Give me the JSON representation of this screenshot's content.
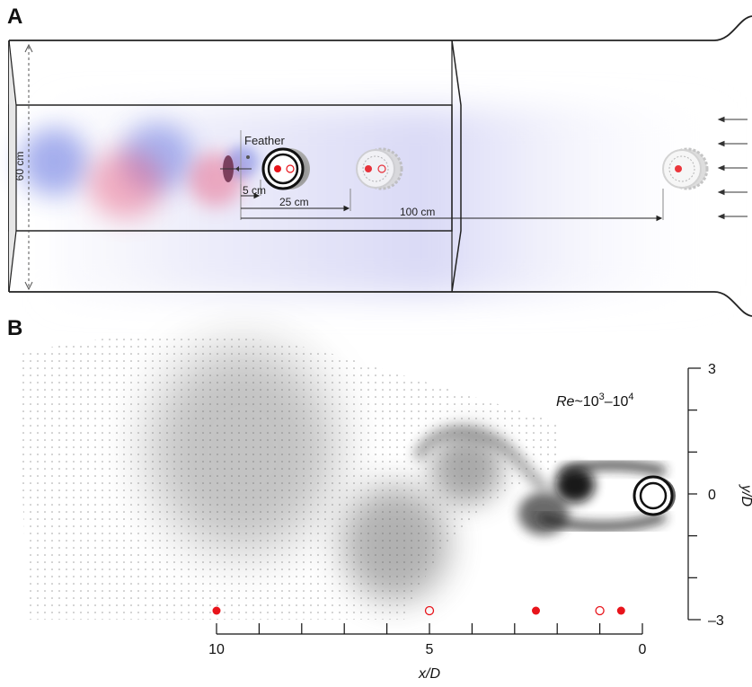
{
  "panels": {
    "a": {
      "letter": "A",
      "height_label": "60 cm",
      "feather_label": "Feather",
      "dist_5": "5 cm",
      "dist_25": "25 cm",
      "dist_100": "100 cm"
    },
    "b": {
      "letter": "B",
      "re_prefix": "Re",
      "re_mid": "~10",
      "re_exp1": "3",
      "re_dash": "–10",
      "re_exp2": "4",
      "x_axis": {
        "title": "x/D",
        "ticks": [
          10,
          5,
          0
        ],
        "range": [
          0,
          10
        ]
      },
      "y_axis": {
        "title": "y/D",
        "ticks": [
          "3",
          "0",
          "–3"
        ],
        "range": [
          -3,
          3
        ]
      },
      "markers": [
        {
          "x": 10,
          "type": "filled"
        },
        {
          "x": 5,
          "type": "open"
        },
        {
          "x": 2.5,
          "type": "filled"
        },
        {
          "x": 1,
          "type": "open"
        },
        {
          "x": 0.5,
          "type": "filled"
        }
      ]
    }
  },
  "colors": {
    "flow_blue": "#3b4fd8",
    "flow_red": "#e8557a",
    "marker_red": "#e8141b",
    "vortex_gray": "#555555"
  }
}
